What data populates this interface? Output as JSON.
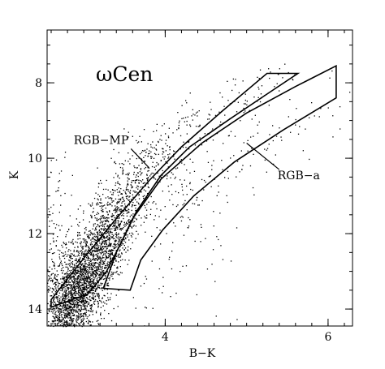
{
  "chart_data": {
    "type": "scatter",
    "title": "ωCen",
    "xlabel": "B−K",
    "ylabel": "K",
    "xlim": [
      2.55,
      6.3
    ],
    "ylim": [
      14.45,
      6.6
    ],
    "y_inverted": true,
    "grid": false,
    "x_ticks": [
      4,
      6
    ],
    "y_ticks": [
      8,
      10,
      12,
      14
    ],
    "x_tick_labels": [
      "4",
      "6"
    ],
    "y_tick_labels": [
      "8",
      "10",
      "12",
      "14"
    ],
    "point_color": "#000000",
    "annotations": [
      {
        "text": "RGB−MP",
        "leader_from": [
          3.58,
          9.75
        ],
        "leader_to": [
          3.8,
          10.25
        ]
      },
      {
        "text": "RGB−a",
        "leader_from": [
          5.4,
          10.3
        ],
        "leader_to": [
          5.0,
          9.6
        ]
      }
    ],
    "regions": [
      {
        "name": "RGB−MP",
        "outline": [
          [
            2.6,
            13.75
          ],
          [
            3.02,
            12.6
          ],
          [
            3.4,
            11.6
          ],
          [
            3.8,
            10.6
          ],
          [
            4.2,
            9.7
          ],
          [
            4.7,
            8.75
          ],
          [
            5.25,
            7.75
          ],
          [
            5.63,
            7.75
          ],
          [
            5.25,
            8.3
          ],
          [
            4.8,
            8.95
          ],
          [
            4.3,
            9.7
          ],
          [
            3.95,
            10.45
          ],
          [
            3.65,
            11.4
          ],
          [
            3.48,
            12.15
          ],
          [
            3.28,
            13.0
          ],
          [
            3.05,
            13.6
          ],
          [
            2.6,
            13.95
          ]
        ]
      },
      {
        "name": "RGB−a",
        "outline": [
          [
            3.24,
            13.45
          ],
          [
            3.57,
            13.5
          ],
          [
            3.7,
            12.7
          ],
          [
            3.97,
            11.9
          ],
          [
            4.35,
            11.0
          ],
          [
            4.85,
            10.1
          ],
          [
            5.45,
            9.25
          ],
          [
            6.1,
            8.4
          ],
          [
            6.1,
            7.55
          ],
          [
            5.6,
            8.1
          ],
          [
            5.0,
            8.8
          ],
          [
            4.45,
            9.6
          ],
          [
            3.95,
            10.55
          ],
          [
            3.6,
            11.6
          ],
          [
            3.4,
            12.5
          ]
        ]
      }
    ],
    "point_density": [
      {
        "x": 2.8,
        "y": 13.9,
        "spread_x": 0.17,
        "spread_y": 0.5,
        "n": 1000
      },
      {
        "x": 3.0,
        "y": 13.2,
        "spread_x": 0.15,
        "spread_y": 0.45,
        "n": 850
      },
      {
        "x": 3.2,
        "y": 12.4,
        "spread_x": 0.14,
        "spread_y": 0.4,
        "n": 600
      },
      {
        "x": 3.38,
        "y": 11.6,
        "spread_x": 0.15,
        "spread_y": 0.4,
        "n": 380
      },
      {
        "x": 3.6,
        "y": 10.7,
        "spread_x": 0.16,
        "spread_y": 0.4,
        "n": 220
      },
      {
        "x": 3.9,
        "y": 9.9,
        "spread_x": 0.17,
        "spread_y": 0.35,
        "n": 120
      },
      {
        "x": 4.35,
        "y": 9.1,
        "spread_x": 0.2,
        "spread_y": 0.35,
        "n": 70
      },
      {
        "x": 4.9,
        "y": 8.4,
        "spread_x": 0.22,
        "spread_y": 0.3,
        "n": 45
      },
      {
        "x": 5.4,
        "y": 7.9,
        "spread_x": 0.15,
        "spread_y": 0.25,
        "n": 20
      },
      {
        "x": 4.1,
        "y": 11.3,
        "spread_x": 0.25,
        "spread_y": 0.7,
        "n": 80
      },
      {
        "x": 4.6,
        "y": 10.5,
        "spread_x": 0.25,
        "spread_y": 0.6,
        "n": 50
      },
      {
        "x": 5.2,
        "y": 9.5,
        "spread_x": 0.3,
        "spread_y": 0.5,
        "n": 40
      },
      {
        "x": 5.8,
        "y": 8.7,
        "spread_x": 0.2,
        "spread_y": 0.4,
        "n": 15
      },
      {
        "x": 2.7,
        "y": 12.0,
        "spread_x": 0.12,
        "spread_y": 0.9,
        "n": 120
      },
      {
        "x": 4.0,
        "y": 13.5,
        "spread_x": 0.6,
        "spread_y": 0.6,
        "n": 45
      }
    ]
  }
}
